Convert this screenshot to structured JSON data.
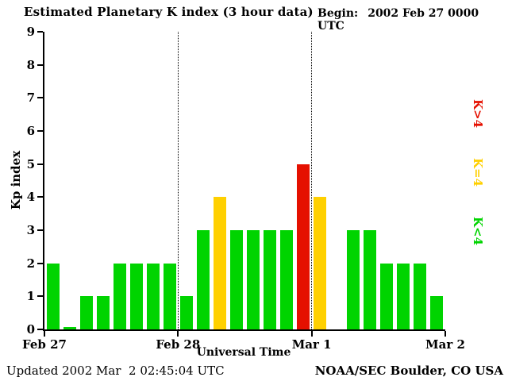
{
  "header": {
    "title": "Estimated Planetary K index (3 hour data)",
    "begin_label": "Begin:",
    "begin_value": "2002 Feb 27 0000 UTC"
  },
  "chart_data": {
    "type": "bar",
    "title": "Estimated Planetary K index (3 hour data)",
    "xlabel": "Universal Time",
    "ylabel": "Kp index",
    "ylim": [
      0,
      9
    ],
    "y_ticks": [
      0,
      1,
      2,
      3,
      4,
      5,
      6,
      7,
      8,
      9
    ],
    "x_tick_labels": [
      "Feb 27",
      "Feb 28",
      "Mar 1",
      "Mar 2"
    ],
    "bars_per_day": 8,
    "grid": "dotted vertical lines at day boundaries",
    "days": [
      {
        "date": "Feb 27",
        "values": [
          2,
          0,
          1,
          1,
          2,
          2,
          2,
          2
        ]
      },
      {
        "date": "Feb 28",
        "values": [
          1,
          3,
          4,
          3,
          3,
          3,
          3,
          5
        ]
      },
      {
        "date": "Mar 1",
        "values": [
          4,
          null,
          3,
          3,
          2,
          2,
          2,
          1
        ]
      }
    ],
    "colors": {
      "k_lt_4": "#00d400",
      "k_eq_4": "#ffd000",
      "k_gt_4": "#e51000"
    },
    "legend": [
      {
        "label": "K>4",
        "level": "k_gt_4"
      },
      {
        "label": "K=4",
        "level": "k_eq_4"
      },
      {
        "label": "K<4",
        "level": "k_lt_4"
      }
    ],
    "legend_position": "right, rotated 90deg"
  },
  "footer": {
    "updated": "Updated 2002 Mar  2 02:45:04 UTC",
    "source": "NOAA/SEC Boulder, CO USA"
  }
}
